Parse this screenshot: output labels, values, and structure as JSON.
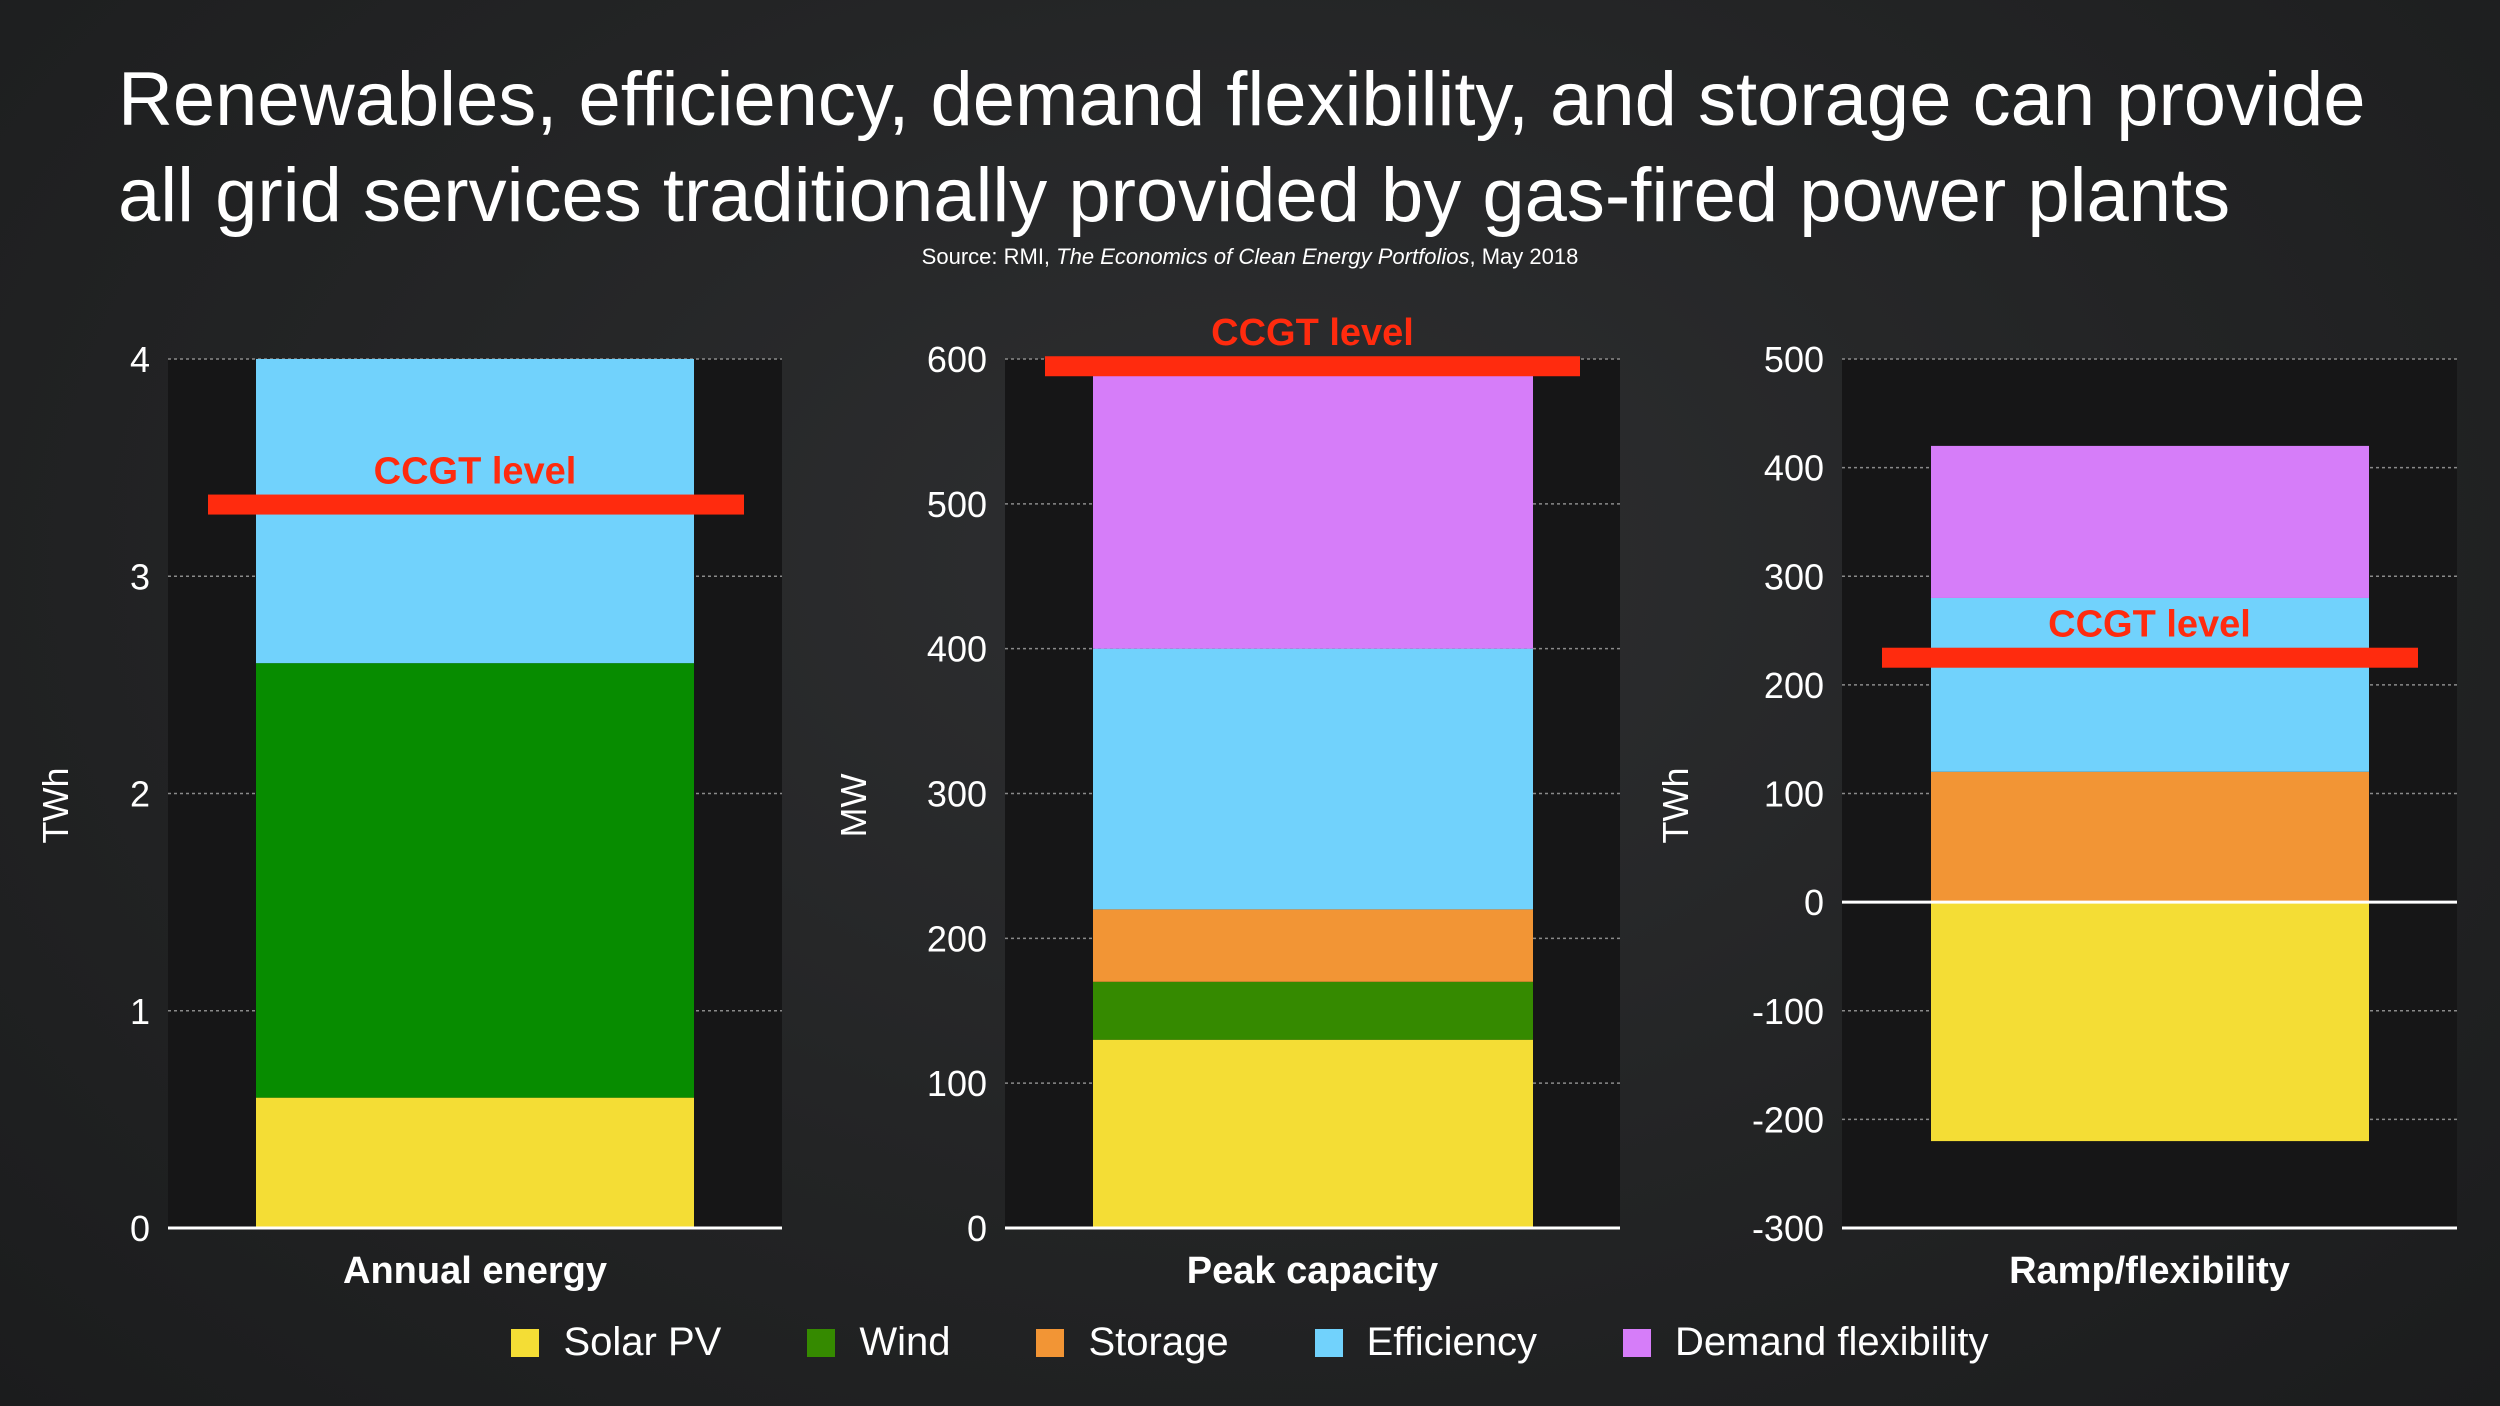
{
  "title": {
    "line1": "Renewables, efficiency, demand flexibility, and storage can provide",
    "line2": "all grid services traditionally provided by gas-fired power plants"
  },
  "source": {
    "prefix": "Source: RMI, ",
    "publication": "The Economics of Clean Energy Portfolios",
    "suffix": ", May 2018"
  },
  "colors": {
    "solar": "#f4dd35",
    "wind": "#078c00",
    "wind_alt": "#358a00",
    "storage": "#f29535",
    "efficiency": "#71d2fc",
    "demand": "#d67df9",
    "ccgt": "#ff2b0e",
    "plot_bg": "#161617"
  },
  "legend": [
    {
      "label": "Solar PV",
      "color": "#f4dd35"
    },
    {
      "label": "Wind",
      "color": "#358a00"
    },
    {
      "label": "Storage",
      "color": "#f29535"
    },
    {
      "label": "Efficiency",
      "color": "#71d2fc"
    },
    {
      "label": "Demand flexibility",
      "color": "#d67df9"
    }
  ],
  "chart_data": [
    {
      "type": "bar",
      "stacked": true,
      "title": "",
      "xlabel": "Annual energy",
      "ylabel": "TWh",
      "ylim": [
        0,
        4
      ],
      "yticks": [
        "0",
        "1",
        "2",
        "3",
        "4"
      ],
      "series": [
        {
          "name": "Solar PV",
          "value": 0.6,
          "color": "#f4dd35"
        },
        {
          "name": "Wind",
          "value": 2.0,
          "color": "#078c00"
        },
        {
          "name": "Efficiency",
          "value": 1.4,
          "color": "#71d2fc"
        }
      ],
      "ccgt_level": 3.33,
      "ccgt_label": "CCGT level"
    },
    {
      "type": "bar",
      "stacked": true,
      "title": "",
      "xlabel": "Peak capacity",
      "ylabel": "MW",
      "ylim": [
        0,
        600
      ],
      "yticks": [
        "0",
        "100",
        "200",
        "300",
        "400",
        "500",
        "600"
      ],
      "series": [
        {
          "name": "Solar PV",
          "value": 130,
          "color": "#f4dd35"
        },
        {
          "name": "Wind",
          "value": 40,
          "color": "#358a00"
        },
        {
          "name": "Storage",
          "value": 50,
          "color": "#f29535"
        },
        {
          "name": "Efficiency",
          "value": 180,
          "color": "#71d2fc"
        },
        {
          "name": "Demand flexibility",
          "value": 190,
          "color": "#d67df9"
        }
      ],
      "ccgt_level": 595,
      "ccgt_label": "CCGT level"
    },
    {
      "type": "bar",
      "stacked": true,
      "title": "",
      "xlabel": "Ramp/flexibility",
      "ylabel": "TWh",
      "ylim": [
        -300,
        500
      ],
      "yticks": [
        "-300",
        "-200",
        "-100",
        "0",
        "100",
        "200",
        "300",
        "400",
        "500"
      ],
      "series": [
        {
          "name": "Solar PV",
          "value": -220,
          "color": "#f4dd35"
        },
        {
          "name": "Storage",
          "value": 120,
          "color": "#f29535"
        },
        {
          "name": "Efficiency",
          "value": 160,
          "color": "#71d2fc"
        },
        {
          "name": "Demand flexibility",
          "value": 140,
          "color": "#d67df9"
        }
      ],
      "ccgt_level": 225,
      "ccgt_label": "CCGT level"
    }
  ]
}
